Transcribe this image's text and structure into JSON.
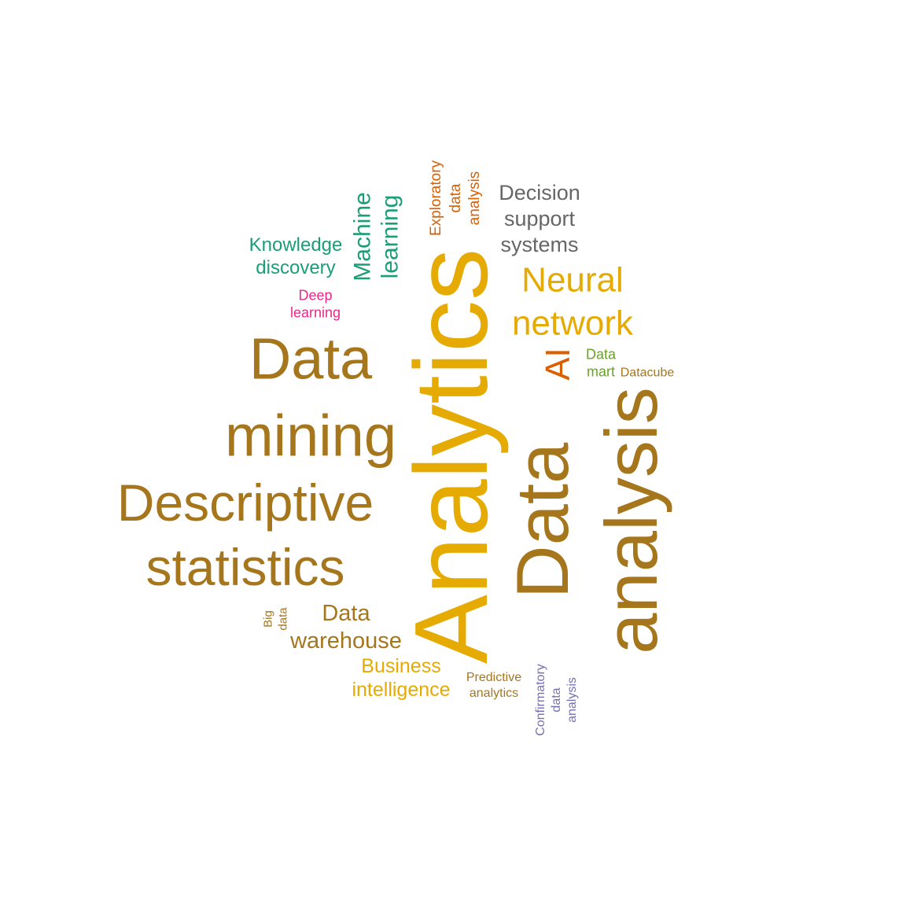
{
  "palette": {
    "bronze": "#A6761D",
    "gold": "#E6AB02",
    "teal": "#1B9E77",
    "orange": "#D95F02",
    "gray": "#666666",
    "pink": "#E7298A",
    "green": "#66A61E",
    "purple": "#7570B3"
  },
  "words": [
    {
      "id": "analytics",
      "lines": [
        "Analytics"
      ],
      "color": "gold"
    },
    {
      "id": "data-analysis",
      "lines": [
        "Data",
        "analysis"
      ],
      "color": "bronze"
    },
    {
      "id": "data-mining",
      "lines": [
        "Data",
        "mining"
      ],
      "color": "bronze"
    },
    {
      "id": "descriptive-statistics",
      "lines": [
        "Descriptive",
        "statistics"
      ],
      "color": "bronze"
    },
    {
      "id": "neural-network",
      "lines": [
        "Neural",
        "network"
      ],
      "color": "gold"
    },
    {
      "id": "decision-support-systems",
      "lines": [
        "Decision",
        "support",
        "systems"
      ],
      "color": "gray"
    },
    {
      "id": "machine-learning",
      "lines": [
        "Machine",
        "learning"
      ],
      "color": "teal"
    },
    {
      "id": "knowledge-discovery",
      "lines": [
        "Knowledge",
        "discovery"
      ],
      "color": "teal"
    },
    {
      "id": "exploratory-data-analysis",
      "lines": [
        "Exploratory",
        "data",
        "analysis"
      ],
      "color": "orange"
    },
    {
      "id": "deep-learning",
      "lines": [
        "Deep",
        "learning"
      ],
      "color": "pink"
    },
    {
      "id": "ai",
      "lines": [
        "AI"
      ],
      "color": "orange"
    },
    {
      "id": "data-mart",
      "lines": [
        "Data",
        "mart"
      ],
      "color": "green"
    },
    {
      "id": "datacube",
      "lines": [
        "Datacube"
      ],
      "color": "bronze"
    },
    {
      "id": "data-warehouse",
      "lines": [
        "Data",
        "warehouse"
      ],
      "color": "bronze"
    },
    {
      "id": "big-data",
      "lines": [
        "Big",
        "data"
      ],
      "color": "bronze"
    },
    {
      "id": "business-intelligence",
      "lines": [
        "Business",
        "intelligence"
      ],
      "color": "gold"
    },
    {
      "id": "predictive-analytics",
      "lines": [
        "Predictive",
        "analytics"
      ],
      "color": "bronze"
    },
    {
      "id": "confirmatory-data-analysis",
      "lines": [
        "Confirmatory",
        "data",
        "analysis"
      ],
      "color": "purple"
    }
  ]
}
